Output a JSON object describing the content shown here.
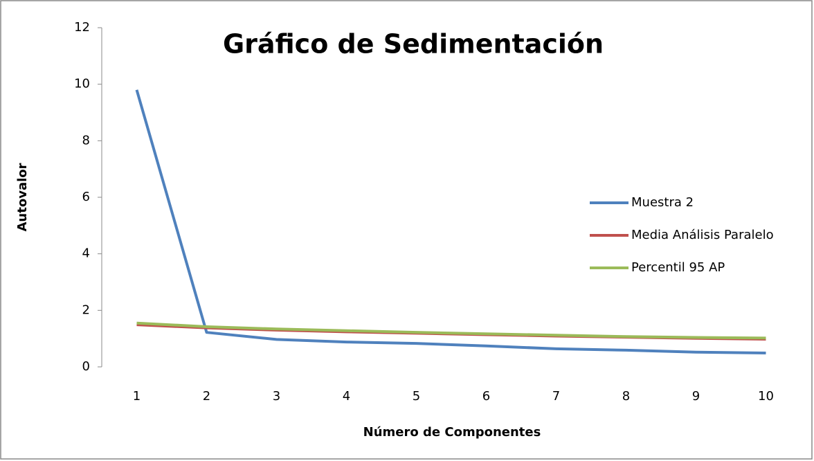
{
  "chart_data": {
    "type": "line",
    "title": "Gráfico de Sedimentación",
    "x_label": "Número de Componentes",
    "y_label": "Autovalor",
    "categories": [
      "1",
      "2",
      "3",
      "4",
      "5",
      "6",
      "7",
      "8",
      "9",
      "10"
    ],
    "series": [
      {
        "name": "Muestra 2",
        "color": "#4f81bd",
        "values": [
          9.8,
          1.22,
          0.97,
          0.88,
          0.83,
          0.74,
          0.64,
          0.59,
          0.52,
          0.49
        ]
      },
      {
        "name": "Media Análisis Paralelo",
        "color": "#c0504d",
        "values": [
          1.49,
          1.38,
          1.3,
          1.24,
          1.19,
          1.14,
          1.09,
          1.05,
          1.01,
          0.98
        ]
      },
      {
        "name": "Percentil 95 AP",
        "color": "#9bbb59",
        "values": [
          1.55,
          1.42,
          1.34,
          1.28,
          1.22,
          1.17,
          1.12,
          1.07,
          1.04,
          1.02
        ]
      }
    ],
    "ylim": [
      0,
      12
    ],
    "yticks": [
      0,
      2,
      4,
      6,
      8,
      10,
      12
    ],
    "grid": false,
    "legend": "right"
  }
}
